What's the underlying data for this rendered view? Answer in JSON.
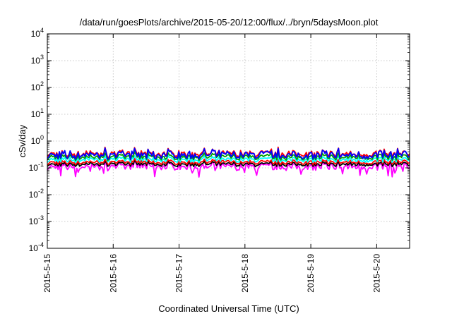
{
  "chart_data": {
    "type": "line",
    "title": "/data/run/goesPlots/archive/2015-05-20/12:00/flux/../bryn/5daysMoon.plot",
    "xlabel": "Coordinated Universal Time (UTC)",
    "ylabel": "cSv/day",
    "yscale": "log",
    "ylim": [
      0.0001,
      10000
    ],
    "xlim": [
      "2015-05-15 00:00",
      "2015-05-20 12:00"
    ],
    "grid": true,
    "legend": "none",
    "x_ticks": [
      "2015-5-15",
      "2015-5-16",
      "2015-5-17",
      "2015-5-18",
      "2015-5-19",
      "2015-5-20"
    ],
    "y_ticks": [
      {
        "value": 0.0001,
        "base": "10",
        "exp": "-4"
      },
      {
        "value": 0.001,
        "base": "10",
        "exp": "-3"
      },
      {
        "value": 0.01,
        "base": "10",
        "exp": "-2"
      },
      {
        "value": 0.1,
        "base": "10",
        "exp": "-1"
      },
      {
        "value": 1,
        "base": "10",
        "exp": "0"
      },
      {
        "value": 10,
        "base": "10",
        "exp": "1"
      },
      {
        "value": 100,
        "base": "10",
        "exp": "2"
      },
      {
        "value": 1000,
        "base": "10",
        "exp": "3"
      },
      {
        "value": 10000,
        "base": "10",
        "exp": "4"
      }
    ],
    "series": [
      {
        "color": "#ff00ff",
        "approx_level": 0.11,
        "amplitude": 0.25
      },
      {
        "color": "#000000",
        "approx_level": 0.135,
        "amplitude": 0.15
      },
      {
        "color": "#ff0000",
        "approx_level": 0.16,
        "amplitude": 0.15
      },
      {
        "color": "#00ffff",
        "approx_level": 0.2,
        "amplitude": 0.18
      },
      {
        "color": "#00a000",
        "approx_level": 0.25,
        "amplitude": 0.2
      },
      {
        "color": "#ff0000",
        "approx_level": 0.33,
        "amplitude": 0.25
      },
      {
        "color": "#0000ff",
        "approx_level": 0.3,
        "amplitude": 0.28
      }
    ]
  }
}
